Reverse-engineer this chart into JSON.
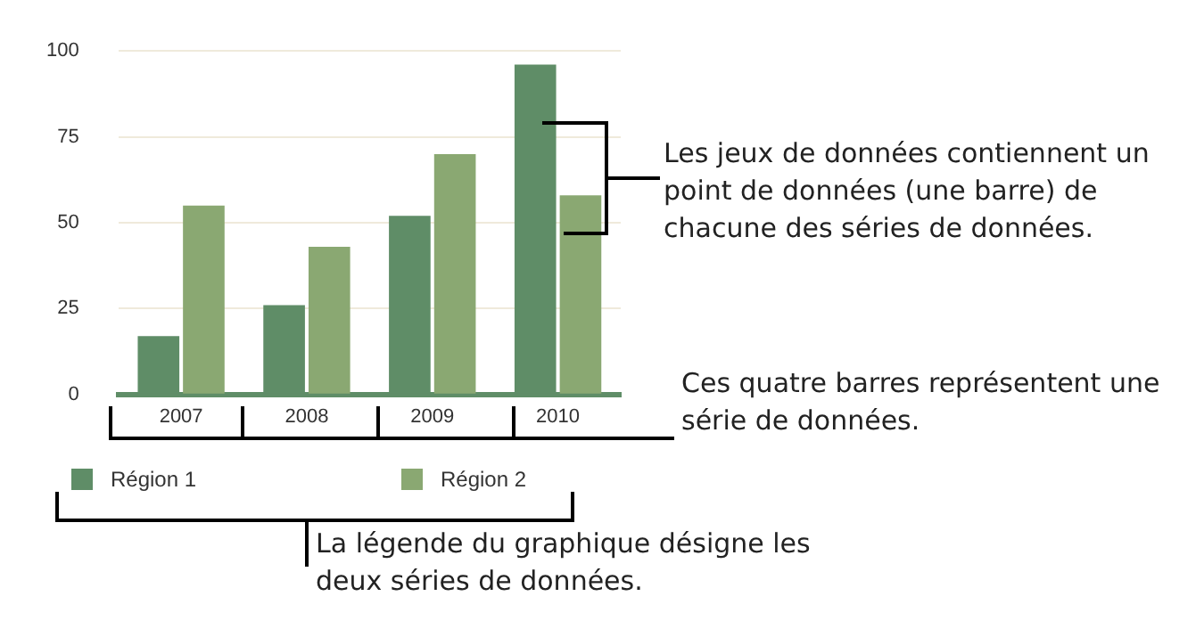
{
  "chart_data": {
    "type": "bar",
    "categories": [
      "2007",
      "2008",
      "2009",
      "2010"
    ],
    "series": [
      {
        "name": "Région 1",
        "color": "#5f8d67",
        "values": [
          17,
          26,
          52,
          96
        ]
      },
      {
        "name": "Région 2",
        "color": "#8aa872",
        "values": [
          55,
          43,
          70,
          58
        ]
      }
    ],
    "ylim": [
      0,
      100
    ],
    "yticks": [
      0,
      25,
      50,
      75,
      100
    ],
    "grid": "y",
    "legend": "bottom",
    "annotations": [
      "Les jeux de données contiennent un point de données (une barre) de chacune des séries de données.",
      "Ces quatre barres représentent une série de données.",
      "La légende du graphique désigne les deux séries de données."
    ]
  }
}
